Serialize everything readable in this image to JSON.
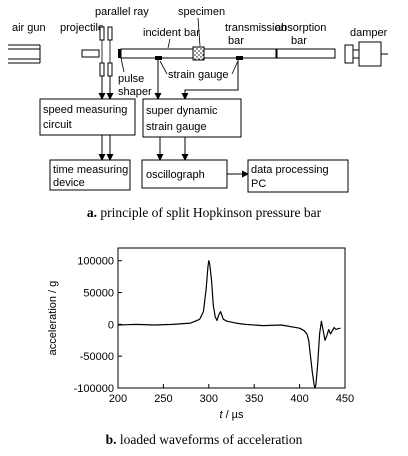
{
  "diagram": {
    "labels": {
      "air_gun": "air gun",
      "projectile": "projectile",
      "parallel_ray": "parallel ray",
      "specimen": "specimen",
      "incident_bar": "incident bar",
      "transmission_bar_1": "transmission",
      "transmission_bar_2": "bar",
      "absorption_bar_1": "absorption",
      "absorption_bar_2": "bar",
      "damper": "damper",
      "pulse_shaper_1": "pulse",
      "pulse_shaper_2": "shaper",
      "strain_gauge": "strain gauge"
    },
    "boxes": {
      "speed_measuring_1": "speed measuring",
      "speed_measuring_2": "circuit",
      "super_dynamic_1": "super dynamic",
      "super_dynamic_2": "strain gauge",
      "time_measuring_1": "time measuring",
      "time_measuring_2": "device",
      "oscillograph": "oscillograph",
      "data_processing_1": "data processing",
      "data_processing_2": "PC"
    },
    "caption_letter": "a.",
    "caption_text": "principle of split Hopkinson pressure bar"
  },
  "chart_data": {
    "type": "line",
    "xlabel_italic": "t",
    "xlabel_rest": " / µs",
    "ylabel": "acceleration / g",
    "xlim": [
      200,
      450
    ],
    "ylim": [
      -100000,
      120000
    ],
    "x_ticks": [
      200,
      250,
      300,
      350,
      400,
      450
    ],
    "y_ticks": [
      100000,
      50000,
      0,
      -50000,
      -100000
    ],
    "series": [
      {
        "x": [
          200,
          220,
          240,
          260,
          280,
          290,
          294,
          297,
          299,
          300,
          301,
          303,
          305,
          307,
          309,
          311,
          313,
          316,
          320,
          330,
          340,
          360,
          380,
          400,
          405,
          408,
          410,
          412,
          414,
          416,
          417,
          418,
          420,
          422,
          424,
          426,
          428,
          430,
          432,
          434,
          436,
          438,
          440,
          442,
          445
        ],
        "y": [
          -1000,
          0,
          -1000,
          0,
          2000,
          8000,
          20000,
          55000,
          90000,
          100000,
          95000,
          70000,
          30000,
          12000,
          6000,
          15000,
          20000,
          8000,
          5000,
          2000,
          0,
          -2000,
          -1000,
          -6000,
          -10000,
          -15000,
          -25000,
          -50000,
          -75000,
          -95000,
          -100000,
          -95000,
          -60000,
          -15000,
          5000,
          -10000,
          -25000,
          -18000,
          -8000,
          -15000,
          -10000,
          -5000,
          -8000,
          -7000,
          -6000
        ]
      }
    ],
    "caption_letter": "b.",
    "caption_text": "loaded waveforms of acceleration"
  }
}
